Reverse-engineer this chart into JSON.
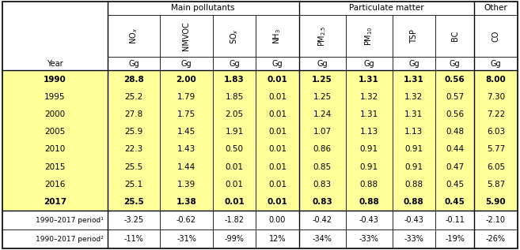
{
  "col_headers_main": [
    "Main pollutants",
    "Particulate matter",
    "Other"
  ],
  "col_headers_sub_display": [
    "NO$_x$",
    "NMVOC",
    "SO$_x$",
    "NH$_3$",
    "PM$_{2.5}$",
    "PM$_{10}$",
    "TSP",
    "BC",
    "CO"
  ],
  "col_units": [
    "Gg",
    "Gg",
    "Gg",
    "Gg",
    "Gg",
    "Gg",
    "Gg",
    "Gg",
    "Gg"
  ],
  "year_col_label": "Year",
  "rows_data": [
    {
      "year": "1990",
      "bold": true,
      "values": [
        "28.8",
        "2.00",
        "1.83",
        "0.01",
        "1.25",
        "1.31",
        "1.31",
        "0.56",
        "8.00"
      ]
    },
    {
      "year": "1995",
      "bold": false,
      "values": [
        "25.2",
        "1.79",
        "1.85",
        "0.01",
        "1.25",
        "1.32",
        "1.32",
        "0.57",
        "7.30"
      ]
    },
    {
      "year": "2000",
      "bold": false,
      "values": [
        "27.8",
        "1.75",
        "2.05",
        "0.01",
        "1.24",
        "1.31",
        "1.31",
        "0.56",
        "7.22"
      ]
    },
    {
      "year": "2005",
      "bold": false,
      "values": [
        "25.9",
        "1.45",
        "1.91",
        "0.01",
        "1.07",
        "1.13",
        "1.13",
        "0.48",
        "6.03"
      ]
    },
    {
      "year": "2010",
      "bold": false,
      "values": [
        "22.3",
        "1.43",
        "0.50",
        "0.01",
        "0.86",
        "0.91",
        "0.91",
        "0.44",
        "5.77"
      ]
    },
    {
      "year": "2015",
      "bold": false,
      "values": [
        "25.5",
        "1.44",
        "0.01",
        "0.01",
        "0.85",
        "0.91",
        "0.91",
        "0.47",
        "6.05"
      ]
    },
    {
      "year": "2016",
      "bold": false,
      "values": [
        "25.1",
        "1.39",
        "0.01",
        "0.01",
        "0.83",
        "0.88",
        "0.88",
        "0.45",
        "5.87"
      ]
    },
    {
      "year": "2017",
      "bold": true,
      "values": [
        "25.5",
        "1.38",
        "0.01",
        "0.01",
        "0.83",
        "0.88",
        "0.88",
        "0.45",
        "5.90"
      ]
    }
  ],
  "period_rows": [
    {
      "label": "1990–2017 period¹",
      "values": [
        "-3.25",
        "-0.62",
        "-1.82",
        "0.00",
        "-0.42",
        "-0.43",
        "-0.43",
        "-0.11",
        "-2.10"
      ]
    },
    {
      "label": "1990–2017 period²",
      "values": [
        "-11%",
        "-31%",
        "-99%",
        "12%",
        "-34%",
        "-33%",
        "-33%",
        "-19%",
        "-26%"
      ]
    }
  ],
  "yellow_bg": "#FFFF99",
  "white_bg": "#FFFFFF",
  "border_color": "#000000"
}
